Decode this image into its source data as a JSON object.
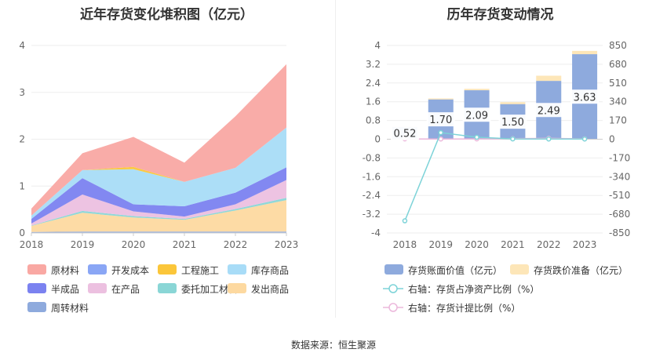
{
  "left_title": "近年存货变化堆积图（亿元）",
  "right_title": "历年存货变动情况",
  "source": "数据来源：恒生聚源",
  "colors": {
    "原材料": "#f9a8a3",
    "开发成本": "#8aa6f5",
    "工程施工": "#fbc63a",
    "库存商品": "#a8dcf7",
    "半成品": "#7b82f0",
    "在产品": "#ecc0e0",
    "委托加工材料": "#8ad6d6",
    "发出商品": "#fdd9a0",
    "周转材料": "#8eaadd",
    "bar_main": "#8eaadd",
    "bar_top": "#fde6b8",
    "line1": "#7dd3d8",
    "line2": "#ecb8dc"
  },
  "left_legend": [
    "原材料",
    "开发成本",
    "工程施工",
    "库存商品",
    "半成品",
    "在产品",
    "委托加工材料",
    "发出商品",
    "周转材料"
  ],
  "right_legend": [
    "存货账面价值（亿元）",
    "存货跌价准备（亿元）",
    "右轴：存货占净资产比例（%）",
    "右轴：存货计提比例（%）"
  ],
  "chart_data": [
    {
      "type": "area",
      "stacked": true,
      "title": "近年存货变化堆积图（亿元）",
      "x": [
        "2018",
        "2019",
        "2020",
        "2021",
        "2022",
        "2023"
      ],
      "ylim": [
        0,
        4
      ],
      "yticks": [
        0,
        1,
        2,
        3,
        4
      ],
      "series": [
        {
          "name": "周转材料",
          "values": [
            0.02,
            0.03,
            0.03,
            0.03,
            0.03,
            0.03
          ]
        },
        {
          "name": "发出商品",
          "values": [
            0.13,
            0.4,
            0.3,
            0.25,
            0.45,
            0.67
          ]
        },
        {
          "name": "委托加工材料",
          "values": [
            0.01,
            0.04,
            0.03,
            0.02,
            0.03,
            0.05
          ]
        },
        {
          "name": "在产品",
          "values": [
            0.04,
            0.35,
            0.1,
            0.05,
            0.1,
            0.38
          ]
        },
        {
          "name": "半成品",
          "values": [
            0.1,
            0.35,
            0.15,
            0.22,
            0.25,
            0.27
          ]
        },
        {
          "name": "开发成本",
          "values": [
            0,
            0,
            0,
            0,
            0,
            0
          ]
        },
        {
          "name": "库存商品",
          "values": [
            0.07,
            0.17,
            0.75,
            0.52,
            0.53,
            0.85
          ]
        },
        {
          "name": "工程施工",
          "values": [
            0,
            0,
            0.05,
            0,
            0,
            0
          ]
        },
        {
          "name": "原材料",
          "values": [
            0.15,
            0.36,
            0.64,
            0.41,
            1.1,
            1.35
          ]
        }
      ]
    },
    {
      "type": "bar",
      "title": "历年存货变动情况",
      "categories": [
        "2018",
        "2019",
        "2020",
        "2021",
        "2022",
        "2023"
      ],
      "ylim": [
        -4,
        4
      ],
      "yticks": [
        -4,
        -3.2,
        -2.4,
        -1.6,
        -0.8,
        0,
        0.8,
        1.6,
        2.4,
        3.2,
        4
      ],
      "ytick_labels": [
        "-4",
        "-3.2",
        "-2.4",
        "-1.6",
        "-0.8",
        "0",
        "0.8",
        "1.6",
        "2.4",
        "3.2",
        "4"
      ],
      "y2lim": [
        -850,
        850
      ],
      "y2ticks": [
        -850,
        -680,
        -510,
        -340,
        -170,
        0,
        170,
        340,
        510,
        680,
        850
      ],
      "series": [
        {
          "name": "存货账面价值（亿元）",
          "values": [
            0.52,
            1.7,
            2.09,
            1.5,
            2.49,
            3.63
          ],
          "labels": [
            "0.52",
            "1.70",
            "2.09",
            "1.50",
            "2.49",
            "3.63"
          ]
        },
        {
          "name": "存货跌价准备（亿元）",
          "values": [
            0.02,
            0.04,
            0.06,
            0.08,
            0.22,
            0.14
          ]
        },
        {
          "name": "右轴：存货占净资产比例（%）",
          "axis": "right",
          "values": [
            -740,
            60,
            18,
            3,
            2,
            2
          ]
        },
        {
          "name": "右轴：存货计提比例（%）",
          "axis": "right",
          "values": [
            3,
            2,
            3,
            5,
            8,
            4
          ]
        }
      ]
    }
  ]
}
